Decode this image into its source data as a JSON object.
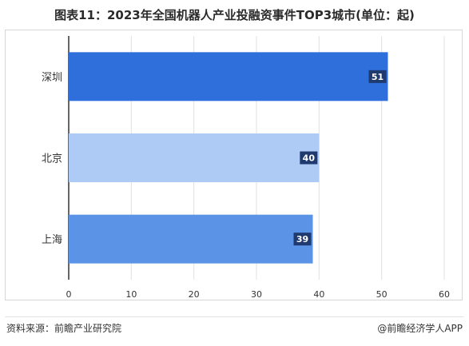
{
  "chart_data": {
    "type": "bar",
    "orientation": "horizontal",
    "title": "图表11：2023年全国机器人产业投融资事件TOP3城市(单位：起)",
    "categories": [
      "深圳",
      "北京",
      "上海"
    ],
    "values": [
      51,
      40,
      39
    ],
    "colors": [
      "#2f6fdc",
      "#aecbf5",
      "#5b93e6"
    ],
    "label_box_color": "#1f3a6e",
    "xlim": [
      0,
      60
    ],
    "xticks": [
      0,
      10,
      20,
      30,
      40,
      50,
      60
    ],
    "grid": true
  },
  "footer": {
    "source": "资料来源：前瞻产业研究院",
    "brand": "@前瞻经济学人APP"
  }
}
